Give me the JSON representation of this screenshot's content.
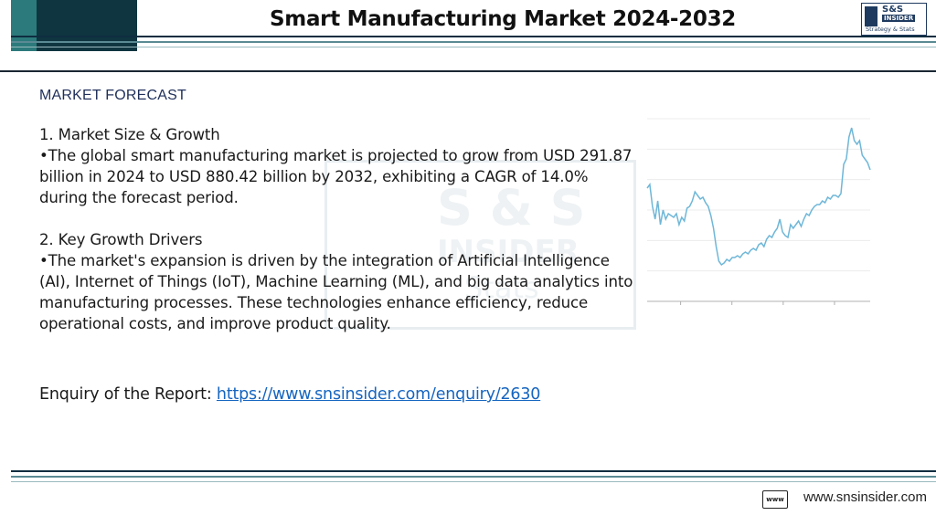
{
  "header": {
    "title": "Smart Manufacturing Market 2024-2032",
    "logo": {
      "line1": "S&S",
      "line2": "INSIDER",
      "line3": "Strategy & Stats"
    }
  },
  "watermark": {
    "line1": "S & S",
    "line2": "INSIDER",
    "line3": "Stats"
  },
  "section_label": "MARKET FORECAST",
  "content": {
    "p1_heading": "1. Market Size & Growth",
    "p1_text": "•The global smart manufacturing market is projected to grow from USD 291.87 billion in 2024 to USD 880.42 billion by 2032, exhibiting a CAGR of 14.0% during the forecast period.",
    "p2_heading": "2. Key Growth Drivers",
    "p2_text": "•The market's expansion is driven by the integration of Artificial Intelligence (AI), Internet of Things (IoT), Machine Learning (ML), and big data analytics into manufacturing processes. These technologies enhance efficiency, reduce operational costs, and improve product quality."
  },
  "enquiry": {
    "label": "Enquiry of the Report: ",
    "link": "https://www.snsinsider.com/enquiry/2630"
  },
  "footer": {
    "site": "www.snsinsider.com",
    "icon_text": "www"
  },
  "chart_data": {
    "type": "line",
    "title": "",
    "xlabel": "",
    "ylabel": "",
    "grid": true,
    "ylim": [
      0,
      100
    ],
    "series": [
      {
        "color": "#6fb7d8",
        "values": [
          62,
          64,
          52,
          45,
          55,
          42,
          50,
          45,
          48,
          47,
          46,
          48,
          42,
          46,
          44,
          51,
          52,
          55,
          60,
          58,
          56,
          57,
          54,
          52,
          47,
          40,
          30,
          22,
          20,
          21,
          23,
          22,
          24,
          24,
          25,
          24,
          26,
          27,
          26,
          28,
          29,
          28,
          31,
          32,
          30,
          34,
          36,
          35,
          38,
          40,
          45,
          38,
          36,
          35,
          42,
          40,
          42,
          44,
          41,
          45,
          48,
          47,
          50,
          52,
          53,
          53,
          55,
          54,
          57,
          56,
          58,
          58,
          57,
          59,
          75,
          78,
          90,
          95,
          88,
          86,
          88,
          80,
          78,
          76,
          72
        ]
      }
    ]
  }
}
